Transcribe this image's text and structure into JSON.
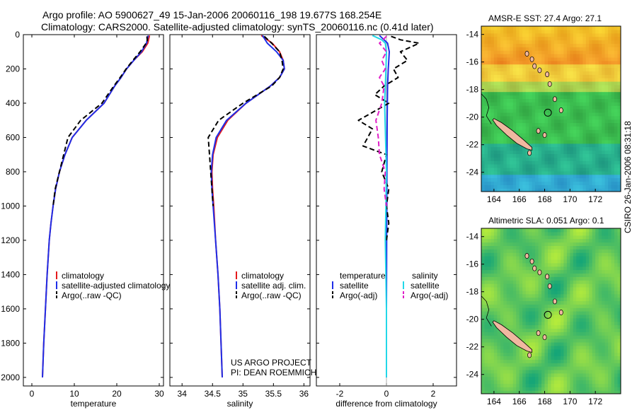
{
  "header": {
    "title_line1": "Argo profile: AO 5900627_49 15-Jan-2006 20060116_198 19.677S 168.254E",
    "title_line2": "Climatology: CARS2000. Satellite-adjusted climatology: synTS_20060116.nc (0.41d later)"
  },
  "stamp": "CSIRO 26-Jan-2006 08:31:18",
  "project": {
    "line1": "US ARGO PROJECT",
    "line2": "PI: DEAN ROEMMICH"
  },
  "colors": {
    "climatology": "#e41a1c",
    "satellite": "#1f2ee8",
    "argo": "#000000",
    "salinity_satellite": "#22d8e8",
    "salinity_argo": "#e020c8"
  },
  "chart_data": [
    {
      "type": "line",
      "name": "temperature-panel",
      "xlabel": "temperature",
      "ylabel": "",
      "xlim": [
        -2,
        31
      ],
      "ylim": [
        2050,
        0
      ],
      "xticks": [
        0,
        10,
        20,
        30
      ],
      "yticks": [
        0,
        200,
        400,
        600,
        800,
        1000,
        1200,
        1400,
        1600,
        1800,
        2000
      ],
      "legend": {
        "placement": "lower-middle",
        "entries": [
          "climatology",
          "satellite-adjusted climatology",
          "Argo(..raw -QC)"
        ]
      },
      "series": [
        {
          "name": "climatology",
          "color": "#e41a1c",
          "dash": "",
          "points": [
            [
              27.7,
              5
            ],
            [
              27.3,
              50
            ],
            [
              26.0,
              100
            ],
            [
              24.0,
              150
            ],
            [
              22.3,
              200
            ],
            [
              21.0,
              250
            ],
            [
              19.5,
              300
            ],
            [
              17.0,
              400
            ],
            [
              12.8,
              500
            ],
            [
              9.5,
              600
            ],
            [
              7.8,
              700
            ],
            [
              6.5,
              800
            ],
            [
              5.6,
              900
            ],
            [
              5.0,
              1000
            ],
            [
              4.5,
              1100
            ],
            [
              4.1,
              1200
            ],
            [
              3.6,
              1400
            ],
            [
              3.2,
              1600
            ],
            [
              2.8,
              1800
            ],
            [
              2.5,
              2000
            ]
          ]
        },
        {
          "name": "satellite-adjusted climatology",
          "color": "#1f2ee8",
          "dash": "",
          "points": [
            [
              27.4,
              5
            ],
            [
              27.0,
              50
            ],
            [
              25.8,
              100
            ],
            [
              24.0,
              150
            ],
            [
              22.3,
              200
            ],
            [
              21.0,
              250
            ],
            [
              19.5,
              300
            ],
            [
              17.0,
              400
            ],
            [
              12.8,
              500
            ],
            [
              9.5,
              600
            ],
            [
              7.8,
              700
            ],
            [
              6.5,
              800
            ],
            [
              5.6,
              900
            ],
            [
              5.0,
              1000
            ],
            [
              4.5,
              1100
            ],
            [
              4.1,
              1200
            ],
            [
              3.6,
              1400
            ],
            [
              3.2,
              1600
            ],
            [
              2.8,
              1800
            ],
            [
              2.5,
              2000
            ]
          ]
        },
        {
          "name": "Argo(..raw -QC)",
          "color": "#000000",
          "dash": "7,4",
          "points": [
            [
              27.1,
              10
            ],
            [
              27.2,
              40
            ],
            [
              25.5,
              100
            ],
            [
              23.8,
              150
            ],
            [
              22.2,
              200
            ],
            [
              20.8,
              250
            ],
            [
              19.3,
              300
            ],
            [
              16.5,
              400
            ],
            [
              11.5,
              500
            ],
            [
              8.5,
              600
            ],
            [
              7.5,
              700
            ],
            [
              6.5,
              800
            ],
            [
              5.5,
              900
            ],
            [
              5.0,
              1000
            ]
          ]
        }
      ]
    },
    {
      "type": "line",
      "name": "salinity-panel",
      "xlabel": "salinity",
      "ylabel": "",
      "xlim": [
        33.8,
        36.1
      ],
      "ylim": [
        2050,
        0
      ],
      "xticks": [
        34,
        34.5,
        35,
        35.5,
        36
      ],
      "yticks": [
        0,
        200,
        400,
        600,
        800,
        1000,
        1200,
        1400,
        1600,
        1800,
        2000
      ],
      "legend": {
        "placement": "lower-middle",
        "entries": [
          "climatology",
          "satellite adj. clim.",
          "Argo(..raw -QC)"
        ]
      },
      "series": [
        {
          "name": "climatology",
          "color": "#e41a1c",
          "dash": "",
          "points": [
            [
              35.3,
              5
            ],
            [
              35.48,
              50
            ],
            [
              35.6,
              100
            ],
            [
              35.66,
              150
            ],
            [
              35.68,
              200
            ],
            [
              35.6,
              250
            ],
            [
              35.45,
              300
            ],
            [
              35.05,
              400
            ],
            [
              34.75,
              500
            ],
            [
              34.58,
              600
            ],
            [
              34.51,
              700
            ],
            [
              34.49,
              800
            ],
            [
              34.5,
              900
            ],
            [
              34.52,
              1000
            ],
            [
              34.55,
              1200
            ],
            [
              34.59,
              1400
            ],
            [
              34.62,
              1600
            ],
            [
              34.64,
              1800
            ],
            [
              34.66,
              2000
            ]
          ]
        },
        {
          "name": "satellite adj. clim.",
          "color": "#1f2ee8",
          "dash": "",
          "points": [
            [
              35.32,
              5
            ],
            [
              35.4,
              50
            ],
            [
              35.55,
              100
            ],
            [
              35.66,
              150
            ],
            [
              35.68,
              200
            ],
            [
              35.6,
              250
            ],
            [
              35.45,
              300
            ],
            [
              35.05,
              400
            ],
            [
              34.73,
              500
            ],
            [
              34.56,
              600
            ],
            [
              34.5,
              700
            ],
            [
              34.48,
              800
            ],
            [
              34.49,
              900
            ],
            [
              34.51,
              1000
            ],
            [
              34.55,
              1200
            ],
            [
              34.59,
              1400
            ],
            [
              34.62,
              1600
            ],
            [
              34.64,
              1800
            ],
            [
              34.66,
              2000
            ]
          ]
        },
        {
          "name": "Argo(..raw -QC)",
          "color": "#000000",
          "dash": "7,4",
          "points": [
            [
              35.35,
              10
            ],
            [
              35.47,
              50
            ],
            [
              35.6,
              100
            ],
            [
              35.64,
              150
            ],
            [
              35.66,
              200
            ],
            [
              35.6,
              250
            ],
            [
              35.47,
              300
            ],
            [
              35.0,
              400
            ],
            [
              34.6,
              500
            ],
            [
              34.43,
              600
            ],
            [
              34.45,
              700
            ],
            [
              34.47,
              800
            ],
            [
              34.49,
              900
            ],
            [
              34.51,
              1000
            ]
          ]
        }
      ]
    },
    {
      "type": "line",
      "name": "difference-panel",
      "xlabel": "difference from climatology",
      "ylabel": "",
      "xlim": [
        -3,
        3
      ],
      "ylim": [
        2050,
        0
      ],
      "xticks": [
        -2,
        0,
        2
      ],
      "yticks": [
        0,
        200,
        400,
        600,
        800,
        1000,
        1200,
        1400,
        1600,
        1800,
        2000
      ],
      "legend": {
        "placement": "lower-middle",
        "entries": [
          "temperature",
          "satellite",
          "Argo(-adj)",
          "salinity",
          "satellite",
          "Argo(-adj)"
        ]
      },
      "series": [
        {
          "name": "satellite",
          "group": "temperature",
          "color": "#1f2ee8",
          "dash": "",
          "points": [
            [
              -0.3,
              5
            ],
            [
              -0.1,
              30
            ],
            [
              0.05,
              50
            ],
            [
              0.12,
              100
            ],
            [
              0.08,
              200
            ],
            [
              0.05,
              300
            ],
            [
              0.03,
              500
            ],
            [
              0.02,
              800
            ],
            [
              0.01,
              1200
            ],
            [
              0.0,
              1600
            ],
            [
              0.0,
              2000
            ]
          ]
        },
        {
          "name": "Argo(-adj)",
          "group": "temperature",
          "color": "#000000",
          "dash": "7,4",
          "points": [
            [
              0.2,
              10
            ],
            [
              0.6,
              30
            ],
            [
              1.4,
              50
            ],
            [
              0.6,
              100
            ],
            [
              0.9,
              150
            ],
            [
              0.3,
              200
            ],
            [
              0.5,
              250
            ],
            [
              -0.1,
              300
            ],
            [
              -0.5,
              350
            ],
            [
              0.1,
              400
            ],
            [
              -1.2,
              500
            ],
            [
              -0.6,
              550
            ],
            [
              -1.0,
              650
            ],
            [
              0.0,
              700
            ],
            [
              -0.2,
              800
            ],
            [
              0.1,
              900
            ],
            [
              0.0,
              1000
            ],
            [
              0.1,
              1100
            ],
            [
              0.0,
              1200
            ]
          ]
        },
        {
          "name": "satellite",
          "group": "salinity",
          "color": "#22d8e8",
          "dash": "",
          "points": [
            [
              -0.6,
              5
            ],
            [
              -0.2,
              30
            ],
            [
              -0.05,
              50
            ],
            [
              0.0,
              100
            ],
            [
              -0.02,
              200
            ],
            [
              -0.05,
              300
            ],
            [
              -0.08,
              400
            ],
            [
              0.0,
              800
            ],
            [
              -0.05,
              1200
            ],
            [
              0.0,
              1600
            ],
            [
              0.0,
              2000
            ]
          ]
        },
        {
          "name": "Argo(-adj)",
          "group": "salinity",
          "color": "#e020c8",
          "dash": "7,4",
          "points": [
            [
              0.0,
              10
            ],
            [
              -0.3,
              50
            ],
            [
              0.0,
              100
            ],
            [
              -0.2,
              150
            ],
            [
              -0.05,
              200
            ],
            [
              -0.3,
              250
            ],
            [
              -0.1,
              300
            ],
            [
              -0.2,
              400
            ],
            [
              -0.45,
              500
            ],
            [
              -0.35,
              600
            ],
            [
              -0.3,
              700
            ],
            [
              -0.05,
              800
            ],
            [
              -0.1,
              900
            ],
            [
              0.0,
              1000
            ]
          ]
        }
      ]
    }
  ],
  "maps": {
    "sst": {
      "title": "AMSR-E SST: 27.4 Argo: 27.1",
      "xticks": [
        "164",
        "166",
        "168",
        "170",
        "172"
      ],
      "yticks": [
        "-14",
        "-16",
        "-18",
        "-20",
        "-22",
        "-24"
      ],
      "xlim": [
        163,
        174
      ],
      "ylim": [
        -25.4,
        -13.4
      ],
      "profile_lon": 168.254,
      "profile_lat": -19.677
    },
    "sla": {
      "title": "Altimetric SLA: 0.051 Argo: 0.1",
      "xticks": [
        "164",
        "166",
        "168",
        "170",
        "172"
      ],
      "yticks": [
        "-14",
        "-16",
        "-18",
        "-20",
        "-22",
        "-24"
      ],
      "xlim": [
        163,
        174
      ],
      "ylim": [
        -25.4,
        -13.4
      ],
      "profile_lon": 168.254,
      "profile_lat": -19.677
    }
  }
}
